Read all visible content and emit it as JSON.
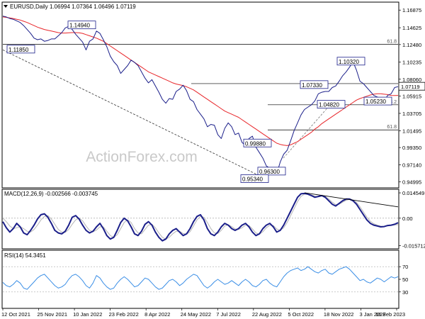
{
  "chart_data": {
    "type": "line",
    "header": "EURUSD,Daily  1.06994 1.07364 1.06496 1.07119",
    "watermark": "ActionForex.com",
    "x_ticks": [
      "12 Oct 2021",
      "25 Nov 2021",
      "10 Jan 2022",
      "23 Feb 2022",
      "8 Apr 2022",
      "24 May 2022",
      "7 Jul 2022",
      "22 Aug 2022",
      "5 Oct 2022",
      "18 Nov 2022",
      "3 Jan 2023",
      "16 Feb 2023"
    ],
    "price_panel": {
      "ylim": [
        0.943,
        1.178
      ],
      "y_ticks": [
        "1.16875",
        "1.14625",
        "1.12480",
        "1.10235",
        "1.08060",
        "1.05915",
        "1.03705",
        "1.01495",
        "0.99350",
        "0.97140",
        "0.94995"
      ],
      "current_price": "1.07119",
      "close_values": [
        1.161,
        1.16,
        1.158,
        1.157,
        1.155,
        1.153,
        1.149,
        1.144,
        1.139,
        1.133,
        1.131,
        1.132,
        1.129,
        1.13,
        1.132,
        1.132,
        1.136,
        1.14,
        1.146,
        1.148,
        1.144,
        1.138,
        1.133,
        1.128,
        1.118,
        1.129,
        1.132,
        1.142,
        1.139,
        1.131,
        1.122,
        1.11,
        1.103,
        1.098,
        1.088,
        1.093,
        1.098,
        1.105,
        1.102,
        1.098,
        1.09,
        1.082,
        1.076,
        1.08,
        1.072,
        1.064,
        1.055,
        1.05,
        1.056,
        1.055,
        1.065,
        1.068,
        1.073,
        1.066,
        1.055,
        1.052,
        1.042,
        1.036,
        1.03,
        1.02,
        1.023,
        1.022,
        1.01,
        1.005,
        1.018,
        1.025,
        1.02,
        1.01,
        1.012,
        1.0,
        0.996,
        1.005,
        1.008,
        0.994,
        0.987,
        0.98,
        0.97,
        0.967,
        0.961,
        0.96,
        0.975,
        0.985,
        0.99,
        1.002,
        1.015,
        1.025,
        1.035,
        1.042,
        1.045,
        1.048,
        1.053,
        1.062,
        1.064,
        1.065,
        1.065,
        1.07,
        1.072,
        1.078,
        1.085,
        1.09,
        1.096,
        1.103,
        1.092,
        1.078,
        1.075,
        1.07,
        1.065,
        1.06,
        1.058,
        1.056,
        1.053,
        1.06,
        1.062,
        1.07,
        1.0712
      ],
      "sma55_values": [
        1.16,
        1.1595,
        1.1588,
        1.158,
        1.157,
        1.156,
        1.1545,
        1.153,
        1.151,
        1.149,
        1.147,
        1.1455,
        1.144,
        1.143,
        1.142,
        1.141,
        1.14,
        1.1395,
        1.1395,
        1.1398,
        1.14,
        1.14,
        1.1398,
        1.139,
        1.1375,
        1.136,
        1.1345,
        1.133,
        1.131,
        1.129,
        1.126,
        1.123,
        1.12,
        1.117,
        1.114,
        1.111,
        1.108,
        1.105,
        1.102,
        1.099,
        1.096,
        1.093,
        1.09,
        1.088,
        1.086,
        1.084,
        1.082,
        1.08,
        1.078,
        1.076,
        1.0745,
        1.0735,
        1.0725,
        1.071,
        1.069,
        1.067,
        1.064,
        1.061,
        1.058,
        1.055,
        1.052,
        1.049,
        1.046,
        1.043,
        1.04,
        1.038,
        1.036,
        1.034,
        1.032,
        1.029,
        1.026,
        1.023,
        1.02,
        1.017,
        1.014,
        1.011,
        1.008,
        1.005,
        1.002,
        0.999,
        0.9975,
        0.9965,
        0.996,
        0.997,
        0.999,
        1.001,
        1.004,
        1.007,
        1.01,
        1.013,
        1.017,
        1.02,
        1.024,
        1.027,
        1.03,
        1.033,
        1.036,
        1.039,
        1.042,
        1.045,
        1.048,
        1.051,
        1.054,
        1.056,
        1.0575,
        1.059,
        1.0605,
        1.0615,
        1.062,
        1.062,
        1.0615,
        1.061,
        1.06,
        1.0598,
        1.06
      ],
      "hlines": [
        {
          "value": 1.125,
          "label": "61.8"
        },
        {
          "value": 1.075,
          "label": ""
        },
        {
          "value": 1.048,
          "label": "38.2"
        },
        {
          "value": 1.016,
          "label": "61.8"
        }
      ],
      "annotations": [
        "1.14940",
        "1.11850",
        "1.10320",
        "1.07330",
        "1.04820",
        "1.05230",
        "0.99880",
        "0.96300",
        "0.95340"
      ]
    },
    "macd_panel": {
      "label": "MACD(12,26,9)  -0.002566  -0.003745",
      "ylim": [
        -0.0172,
        0.0162
      ],
      "y_ticks": [
        "0.014549",
        "0.00",
        "-0.015712"
      ],
      "macd_values": [
        -0.002,
        -0.0055,
        -0.008,
        -0.006,
        -0.003,
        -0.005,
        -0.0085,
        -0.0095,
        -0.007,
        -0.004,
        -0.0005,
        0.002,
        0.0025,
        0.0005,
        -0.003,
        -0.007,
        -0.0085,
        -0.009,
        -0.0075,
        -0.004,
        0.0005,
        0.0015,
        -0.0005,
        -0.004,
        -0.007,
        -0.0085,
        -0.0075,
        -0.005,
        -0.003,
        -0.006,
        -0.01,
        -0.012,
        -0.011,
        -0.007,
        -0.0025,
        0.0,
        -0.0015,
        -0.005,
        -0.009,
        -0.01,
        -0.0075,
        -0.0035,
        -0.002,
        -0.004,
        -0.008,
        -0.011,
        -0.013,
        -0.012,
        -0.009,
        -0.007,
        -0.006,
        -0.008,
        -0.01,
        -0.009,
        -0.006,
        -0.002,
        0.001,
        0.002,
        -0.001,
        -0.006,
        -0.009,
        -0.01,
        -0.008,
        -0.005,
        -0.003,
        -0.004,
        -0.006,
        -0.007,
        -0.006,
        -0.004,
        -0.003,
        -0.005,
        -0.008,
        -0.01,
        -0.009,
        -0.006,
        -0.004,
        -0.003,
        -0.005,
        -0.008,
        -0.007,
        -0.004,
        0.0,
        0.004,
        0.008,
        0.012,
        0.014,
        0.0142,
        0.0138,
        0.013,
        0.012,
        0.0125,
        0.013,
        0.012,
        0.01,
        0.008,
        0.007,
        0.0085,
        0.01,
        0.011,
        0.011,
        0.01,
        0.008,
        0.005,
        0.002,
        -0.001,
        -0.003,
        -0.004,
        -0.0045,
        -0.005,
        -0.0048,
        -0.0042,
        -0.004,
        -0.0035,
        -0.0026
      ],
      "signal_values": [
        0.0,
        -0.002,
        -0.0045,
        -0.006,
        -0.0055,
        -0.005,
        -0.006,
        -0.0075,
        -0.008,
        -0.0065,
        -0.004,
        -0.001,
        0.001,
        0.0015,
        -0.0005,
        -0.0035,
        -0.0065,
        -0.008,
        -0.0082,
        -0.0065,
        -0.0035,
        -0.001,
        0.0,
        -0.0015,
        -0.0045,
        -0.007,
        -0.0078,
        -0.0068,
        -0.005,
        -0.005,
        -0.0075,
        -0.01,
        -0.011,
        -0.0095,
        -0.006,
        -0.0025,
        -0.001,
        -0.0025,
        -0.006,
        -0.0085,
        -0.009,
        -0.0065,
        -0.004,
        -0.0035,
        -0.0055,
        -0.0085,
        -0.011,
        -0.012,
        -0.011,
        -0.009,
        -0.0075,
        -0.0075,
        -0.0088,
        -0.0092,
        -0.0078,
        -0.0045,
        -0.001,
        0.001,
        0.0005,
        -0.0025,
        -0.006,
        -0.0085,
        -0.0088,
        -0.007,
        -0.0045,
        -0.0038,
        -0.0048,
        -0.0062,
        -0.0065,
        -0.0055,
        -0.004,
        -0.0042,
        -0.0062,
        -0.0085,
        -0.0092,
        -0.0078,
        -0.0055,
        -0.004,
        -0.0042,
        -0.0062,
        -0.007,
        -0.0055,
        -0.0025,
        0.0015,
        0.0055,
        0.0095,
        0.0125,
        0.0138,
        0.014,
        0.0134,
        0.0126,
        0.0123,
        0.0127,
        0.0124,
        0.011,
        0.0092,
        0.0078,
        0.008,
        0.0092,
        0.0103,
        0.0108,
        0.0104,
        0.009,
        0.0066,
        0.0036,
        0.0006,
        -0.0018,
        -0.0032,
        -0.004,
        -0.0046,
        -0.0048,
        -0.0045,
        -0.0042,
        -0.0039,
        -0.0037
      ],
      "trendline": [
        0.0146,
        0.0065
      ]
    },
    "rsi_panel": {
      "label": "RSI(14) 54.3451",
      "ylim": [
        5,
        95
      ],
      "y_ticks": [
        "70",
        "50",
        "30"
      ],
      "levels": [
        70,
        30
      ],
      "values": [
        45,
        40,
        38,
        42,
        48,
        44,
        36,
        34,
        40,
        46,
        52,
        56,
        58,
        52,
        46,
        40,
        36,
        38,
        42,
        50,
        56,
        58,
        54,
        48,
        40,
        36,
        44,
        56,
        52,
        44,
        38,
        34,
        36,
        44,
        50,
        54,
        50,
        44,
        38,
        40,
        46,
        52,
        50,
        44,
        38,
        34,
        36,
        42,
        48,
        50,
        46,
        40,
        44,
        50,
        54,
        58,
        56,
        48,
        40,
        36,
        40,
        46,
        50,
        46,
        42,
        44,
        48,
        44,
        40,
        46,
        50,
        46,
        40,
        38,
        42,
        48,
        50,
        44,
        40,
        38,
        46,
        54,
        60,
        64,
        66,
        68,
        64,
        66,
        70,
        66,
        62,
        60,
        64,
        66,
        60,
        58,
        62,
        66,
        68,
        70,
        66,
        60,
        54,
        48,
        50,
        46,
        44,
        48,
        52,
        50,
        46,
        50,
        54,
        52,
        54
      ]
    }
  }
}
